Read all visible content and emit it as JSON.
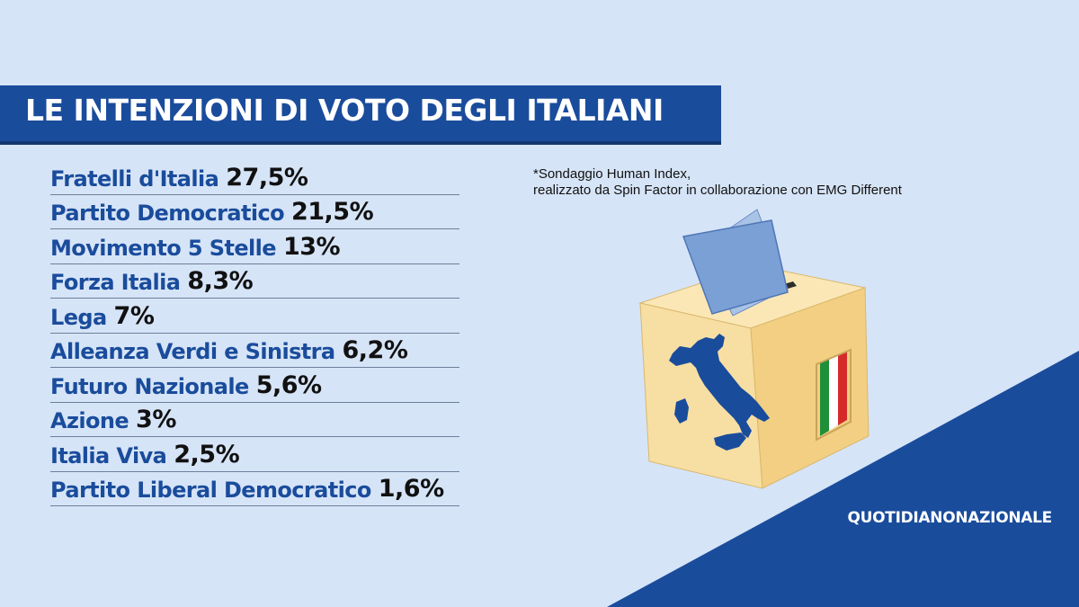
{
  "title": "LE INTENZIONI DI VOTO DEGLI ITALIANI",
  "results": [
    {
      "party": "Fratelli d'Italia",
      "percent": "27,5%"
    },
    {
      "party": "Partito Democratico",
      "percent": "21,5%"
    },
    {
      "party": "Movimento 5 Stelle",
      "percent": "13%"
    },
    {
      "party": "Forza Italia",
      "percent": "8,3%"
    },
    {
      "party": "Lega",
      "percent": "7%"
    },
    {
      "party": "Alleanza Verdi e Sinistra",
      "percent": "6,2%"
    },
    {
      "party": "Futuro Nazionale",
      "percent": "5,6%"
    },
    {
      "party": "Azione",
      "percent": "3%"
    },
    {
      "party": "Italia Viva",
      "percent": "2,5%"
    },
    {
      "party": "Partito Liberal Democratico",
      "percent": "1,6%"
    }
  ],
  "note": {
    "line1": "*Sondaggio Human Index,",
    "line2": "realizzato da Spin Factor in collaborazione con EMG Different"
  },
  "brand": "QUOTIDIANONAZIONALE",
  "illustration": "ballot-box-with-italy-map-and-flag-icon",
  "colors": {
    "background": "#d6e4f7",
    "accent": "#1a4c9c",
    "box": "#f7dfa3"
  }
}
